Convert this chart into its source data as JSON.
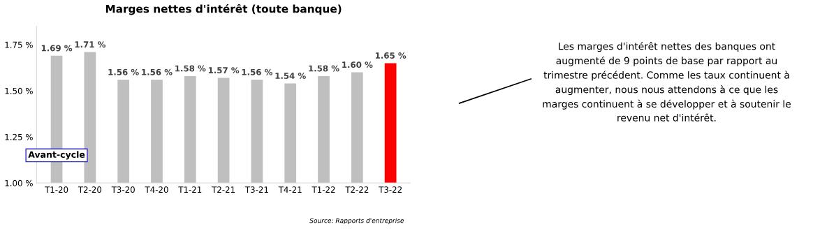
{
  "chart_data": {
    "type": "bar",
    "title": "Marges nettes d'intérêt (toute banque)",
    "categories": [
      "T1-20",
      "T2-20",
      "T3-20",
      "T4-20",
      "T1-21",
      "T2-21",
      "T3-21",
      "T4-21",
      "T1-22",
      "T2-22",
      "T3-22"
    ],
    "values": [
      1.69,
      1.71,
      1.56,
      1.56,
      1.58,
      1.57,
      1.56,
      1.54,
      1.58,
      1.6,
      1.65
    ],
    "colors": [
      "#bfbfbf",
      "#bfbfbf",
      "#bfbfbf",
      "#bfbfbf",
      "#bfbfbf",
      "#bfbfbf",
      "#bfbfbf",
      "#bfbfbf",
      "#bfbfbf",
      "#bfbfbf",
      "#ff0000"
    ],
    "value_labels": [
      "1.69 %",
      "1.71 %",
      "1.56 %",
      "1.56 %",
      "1.58 %",
      "1.57 %",
      "1.56 %",
      "1.54 %",
      "1.58 %",
      "1.60 %",
      "1.65 %"
    ],
    "ylim": [
      1.0,
      1.85
    ],
    "yticks": [
      {
        "value": 1.0,
        "label": "1.00 %"
      },
      {
        "value": 1.25,
        "label": "1.25 %"
      },
      {
        "value": 1.5,
        "label": "1.50 %"
      },
      {
        "value": 1.75,
        "label": "1.75 %"
      }
    ],
    "grid": false,
    "legend": false,
    "annotations": [
      "Avant-cycle",
      "Source: Rapports d'entreprise",
      "Les marges d'intérêt nettes des banques ont augmenté de 9 points de base par rapport au trimestre précédent. Comme les taux continuent à augmenter, nous nous attendons à ce que les marges continuent à se développer et à soutenir le revenu net d'intérêt."
    ]
  }
}
